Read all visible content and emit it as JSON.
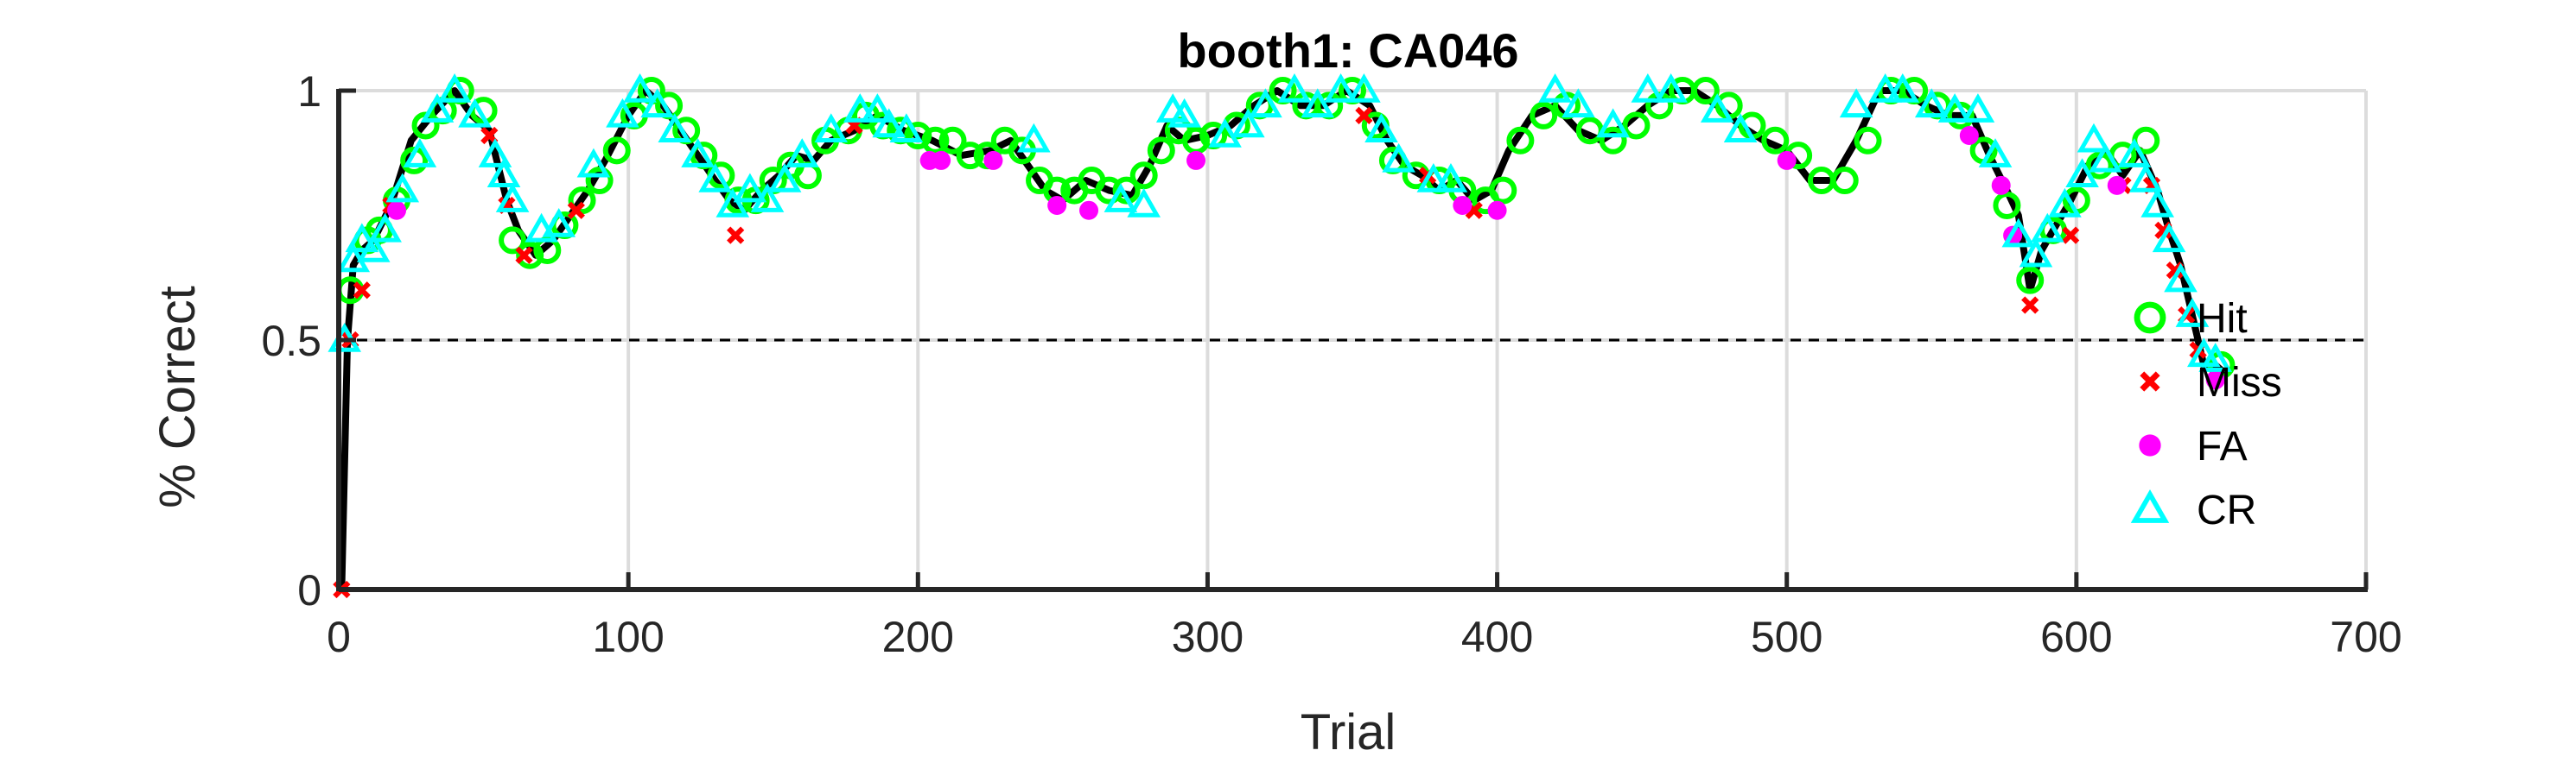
{
  "chart_data": {
    "type": "line",
    "title": "booth1: CA046",
    "xlabel": "Trial",
    "ylabel": "% Correct",
    "xlim": [
      0,
      700
    ],
    "ylim": [
      0,
      1
    ],
    "xticks": [
      0,
      100,
      200,
      300,
      400,
      500,
      600,
      700
    ],
    "xtick_labels": [
      "0",
      "100",
      "200",
      "300",
      "400",
      "500",
      "600",
      "700"
    ],
    "yticks": [
      0,
      0.5,
      1
    ],
    "ytick_labels": [
      "0",
      "0.5",
      "1"
    ],
    "grid": true,
    "reference_line": {
      "y": 0.5,
      "style": "dashed"
    },
    "legend_position": "right",
    "colors": {
      "line": "#000000",
      "hit": "#00ff00",
      "miss": "#ff0000",
      "fa": "#ff00ff",
      "cr": "#00ffff",
      "grid": "#dcdcdc"
    },
    "performance_curve": {
      "x": [
        1,
        3,
        5,
        8,
        12,
        18,
        25,
        32,
        40,
        46,
        52,
        55,
        58,
        62,
        68,
        74,
        80,
        86,
        92,
        100,
        106,
        112,
        118,
        124,
        130,
        135,
        140,
        146,
        152,
        158,
        164,
        170,
        178,
        186,
        195,
        205,
        215,
        225,
        232,
        238,
        244,
        250,
        258,
        266,
        274,
        280,
        286,
        292,
        300,
        308,
        316,
        324,
        332,
        340,
        348,
        356,
        362,
        368,
        374,
        380,
        386,
        392,
        398,
        404,
        412,
        420,
        428,
        436,
        444,
        452,
        460,
        468,
        476,
        484,
        492,
        500,
        508,
        516,
        524,
        532,
        540,
        548,
        556,
        564,
        570,
        576,
        580,
        584,
        588,
        592,
        598,
        604,
        610,
        616,
        622,
        628,
        632,
        636,
        640,
        644,
        648,
        652
      ],
      "y": [
        0,
        0.5,
        0.65,
        0.68,
        0.7,
        0.77,
        0.9,
        0.95,
        1,
        0.95,
        0.92,
        0.85,
        0.78,
        0.72,
        0.67,
        0.7,
        0.75,
        0.8,
        0.86,
        0.95,
        1,
        0.97,
        0.92,
        0.87,
        0.82,
        0.78,
        0.76,
        0.8,
        0.83,
        0.87,
        0.86,
        0.9,
        0.92,
        0.95,
        0.92,
        0.9,
        0.87,
        0.88,
        0.9,
        0.85,
        0.8,
        0.78,
        0.82,
        0.8,
        0.79,
        0.85,
        0.93,
        0.9,
        0.91,
        0.93,
        0.97,
        1,
        0.97,
        0.97,
        1,
        0.97,
        0.9,
        0.85,
        0.83,
        0.8,
        0.82,
        0.78,
        0.8,
        0.88,
        0.95,
        0.97,
        0.92,
        0.9,
        0.93,
        0.97,
        1,
        1,
        0.97,
        0.93,
        0.9,
        0.88,
        0.82,
        0.82,
        0.9,
        1,
        1,
        0.97,
        0.95,
        0.95,
        0.87,
        0.8,
        0.75,
        0.6,
        0.68,
        0.72,
        0.78,
        0.85,
        0.88,
        0.83,
        0.88,
        0.8,
        0.72,
        0.65,
        0.55,
        0.45,
        0.45,
        0.43
      ]
    },
    "series": [
      {
        "name": "Hit",
        "marker": "circle",
        "x": [
          4,
          10,
          14,
          20,
          26,
          30,
          36,
          42,
          50,
          60,
          66,
          72,
          78,
          84,
          90,
          96,
          102,
          108,
          114,
          120,
          126,
          132,
          138,
          144,
          150,
          156,
          162,
          168,
          176,
          182,
          188,
          194,
          200,
          206,
          212,
          218,
          224,
          230,
          236,
          242,
          248,
          254,
          260,
          266,
          272,
          278,
          284,
          290,
          296,
          302,
          310,
          318,
          326,
          334,
          342,
          350,
          358,
          364,
          372,
          380,
          388,
          396,
          402,
          408,
          416,
          424,
          432,
          440,
          448,
          456,
          464,
          472,
          480,
          488,
          496,
          504,
          512,
          520,
          528,
          536,
          544,
          552,
          560,
          568,
          576,
          584,
          592,
          600,
          608,
          616,
          624,
          650
        ],
        "y": [
          0.6,
          0.7,
          0.72,
          0.78,
          0.86,
          0.93,
          0.96,
          1,
          0.96,
          0.7,
          0.67,
          0.68,
          0.73,
          0.78,
          0.82,
          0.88,
          0.95,
          1,
          0.97,
          0.92,
          0.87,
          0.83,
          0.78,
          0.78,
          0.82,
          0.85,
          0.83,
          0.9,
          0.92,
          0.95,
          0.93,
          0.92,
          0.91,
          0.9,
          0.9,
          0.87,
          0.87,
          0.9,
          0.88,
          0.82,
          0.8,
          0.8,
          0.82,
          0.8,
          0.8,
          0.83,
          0.88,
          0.92,
          0.9,
          0.91,
          0.93,
          0.97,
          1,
          0.97,
          0.97,
          1,
          0.93,
          0.86,
          0.83,
          0.82,
          0.8,
          0.78,
          0.8,
          0.9,
          0.95,
          0.97,
          0.92,
          0.9,
          0.93,
          0.97,
          1,
          1,
          0.97,
          0.93,
          0.9,
          0.87,
          0.82,
          0.82,
          0.9,
          1,
          1,
          0.97,
          0.95,
          0.88,
          0.77,
          0.62,
          0.72,
          0.78,
          0.85,
          0.87,
          0.9,
          0.45
        ]
      },
      {
        "name": "Miss",
        "marker": "x",
        "x": [
          1,
          4,
          8,
          18,
          52,
          58,
          64,
          82,
          137,
          178,
          354,
          376,
          392,
          584,
          598,
          616,
          626,
          630,
          634,
          638,
          642
        ],
        "y": [
          0,
          0.5,
          0.6,
          0.77,
          0.91,
          0.77,
          0.67,
          0.76,
          0.71,
          0.93,
          0.95,
          0.83,
          0.76,
          0.57,
          0.71,
          0.81,
          0.81,
          0.72,
          0.64,
          0.55,
          0.48
        ]
      },
      {
        "name": "FA",
        "marker": "dot",
        "x": [
          20,
          204,
          208,
          226,
          248,
          259,
          296,
          388,
          400,
          500,
          563,
          574,
          578,
          614,
          648
        ],
        "y": [
          0.76,
          0.86,
          0.86,
          0.86,
          0.77,
          0.76,
          0.86,
          0.77,
          0.76,
          0.86,
          0.91,
          0.81,
          0.71,
          0.81,
          0.42
        ]
      },
      {
        "name": "CR",
        "marker": "triangle",
        "x": [
          2,
          5,
          8,
          12,
          16,
          22,
          28,
          34,
          40,
          47,
          54,
          57,
          60,
          70,
          76,
          88,
          98,
          104,
          110,
          116,
          124,
          130,
          136,
          142,
          148,
          154,
          160,
          170,
          180,
          186,
          190,
          196,
          240,
          270,
          278,
          288,
          292,
          306,
          314,
          320,
          330,
          338,
          346,
          354,
          360,
          366,
          378,
          384,
          420,
          428,
          440,
          452,
          460,
          476,
          484,
          524,
          534,
          540,
          550,
          558,
          566,
          572,
          580,
          586,
          590,
          596,
          602,
          606,
          610,
          620,
          624,
          628,
          632,
          636,
          640,
          644,
          648
        ],
        "y": [
          0.5,
          0.66,
          0.7,
          0.68,
          0.72,
          0.8,
          0.87,
          0.96,
          1,
          0.95,
          0.87,
          0.83,
          0.78,
          0.72,
          0.73,
          0.85,
          0.95,
          1,
          0.97,
          0.92,
          0.87,
          0.82,
          0.77,
          0.8,
          0.78,
          0.82,
          0.87,
          0.92,
          0.96,
          0.96,
          0.93,
          0.92,
          0.9,
          0.78,
          0.77,
          0.96,
          0.95,
          0.91,
          0.93,
          0.97,
          1,
          0.97,
          1,
          1,
          0.92,
          0.86,
          0.82,
          0.82,
          1,
          0.97,
          0.93,
          1,
          1,
          0.96,
          0.92,
          0.97,
          1,
          1,
          0.97,
          0.96,
          0.96,
          0.87,
          0.71,
          0.67,
          0.72,
          0.77,
          0.83,
          0.9,
          0.86,
          0.87,
          0.82,
          0.77,
          0.7,
          0.62,
          0.55,
          0.47,
          0.46
        ]
      }
    ],
    "legend": [
      {
        "label": "Hit",
        "marker": "circle"
      },
      {
        "label": "Miss",
        "marker": "x"
      },
      {
        "label": "FA",
        "marker": "dot"
      },
      {
        "label": "CR",
        "marker": "triangle"
      }
    ]
  }
}
